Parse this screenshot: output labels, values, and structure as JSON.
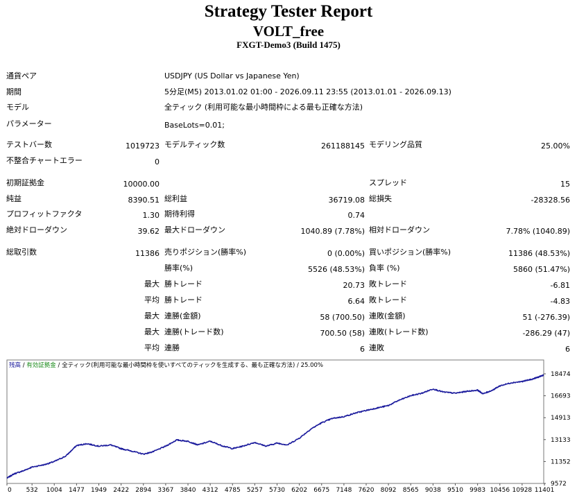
{
  "header": {
    "title": "Strategy Tester Report",
    "ea_name": "VOLT_free",
    "server_build": "FXGT-Demo3 (Build 1475)"
  },
  "info": {
    "symbol_label": "通貨ペア",
    "symbol": "USDJPY (US Dollar vs Japanese Yen)",
    "period_label": "期間",
    "period": "5分足(M5) 2013.01.02 01:00 - 2026.09.11 23:55 (2013.01.01 - 2026.09.13)",
    "model_label": "モデル",
    "model": "全ティック (利用可能な最小時間枠による最も正確な方法)",
    "params_label": "パラメーター",
    "params": "BaseLots=0.01;"
  },
  "stats": {
    "bars_label": "テストバー数",
    "bars": "1019723",
    "ticks_label": "モデルティック数",
    "ticks": "261188145",
    "quality_label": "モデリング品質",
    "quality": "25.00%",
    "errors_label": "不整合チャートエラー",
    "errors": "0",
    "deposit_label": "初期証拠金",
    "deposit": "10000.00",
    "spread_label": "スプレッド",
    "spread": "15",
    "net_label": "純益",
    "net": "8390.51",
    "gross_profit_label": "総利益",
    "gross_profit": "36719.08",
    "gross_loss_label": "総損失",
    "gross_loss": "-28328.56",
    "pf_label": "プロフィットファクタ",
    "pf": "1.30",
    "expected_label": "期待利得",
    "expected": "0.74",
    "abs_dd_label": "絶対ドローダウン",
    "abs_dd": "39.62",
    "max_dd_label": "最大ドローダウン",
    "max_dd": "1040.89 (7.78%)",
    "rel_dd_label": "相対ドローダウン",
    "rel_dd": "7.78% (1040.89)",
    "trades_label": "総取引数",
    "trades": "11386",
    "short_label": "売りポジション(勝率%)",
    "short": "0 (0.00%)",
    "long_label": "買いポジション(勝率%)",
    "long": "11386 (48.53%)",
    "win_label": "勝率(%)",
    "win": "5526 (48.53%)",
    "loss_label": "負率 (%)",
    "loss": "5860 (51.47%)",
    "max_word": "最大",
    "avg_word": "平均",
    "win_trade_label": "勝トレード",
    "loss_trade_label": "敗トレード",
    "largest_win": "20.73",
    "largest_loss": "-6.81",
    "average_win": "6.64",
    "average_loss": "-4.83",
    "consec_win_money_label": "連勝(金額)",
    "consec_win_money": "58 (700.50)",
    "consec_loss_money_label": "連敗(金額)",
    "consec_loss_money": "51 (-276.39)",
    "consec_win_trades_label": "連勝(トレード数)",
    "consec_win_trades": "700.50 (58)",
    "consec_loss_trades_label": "連敗(トレード数)",
    "consec_loss_trades": "-286.29 (47)",
    "avg_consec_win_label": "連勝",
    "avg_consec_win": "6",
    "avg_consec_loss_label": "連敗",
    "avg_consec_loss": "6"
  },
  "chart_data": {
    "type": "line",
    "legend": {
      "balance": "残高",
      "sep1": " / ",
      "equity": "有効証拠金",
      "sep2": " / ",
      "model": "全ティック(利用可能な最小時間枠を使いすべてのティックを生成する、最も正確な方法)",
      "sep3": " / ",
      "quality": "25.00%"
    },
    "colors": {
      "line": "#1a1a9c",
      "balance_label": "#1a1a9c",
      "equity_label": "#1a8a1a"
    },
    "x_ticks": [
      0,
      532,
      1004,
      1477,
      1949,
      2422,
      2894,
      3367,
      3840,
      4312,
      4785,
      5257,
      5730,
      6202,
      6675,
      7148,
      7620,
      8092,
      8565,
      9038,
      9510,
      9983,
      10456,
      10928,
      11401
    ],
    "y_ticks": [
      18474,
      16693,
      14913,
      13133,
      11352,
      9572
    ],
    "xlim": [
      0,
      11386
    ],
    "ylim": [
      9572,
      18474
    ],
    "series": [
      {
        "x": [
          0,
          150,
          350,
          532,
          800,
          1004,
          1250,
          1477,
          1700,
          1949,
          2200,
          2422,
          2650,
          2894,
          3100,
          3367,
          3600,
          3840,
          4050,
          4312,
          4550,
          4785,
          5000,
          5257,
          5500,
          5730,
          5950,
          6202,
          6450,
          6675,
          6900,
          7148,
          7400,
          7620,
          7850,
          8092,
          8300,
          8565,
          8800,
          9038,
          9250,
          9510,
          9750,
          9983,
          10100,
          10300,
          10456,
          10700,
          10928,
          11150,
          11300,
          11386
        ],
        "y": [
          10000,
          10350,
          10600,
          10900,
          11100,
          11350,
          11800,
          12650,
          12800,
          12600,
          12700,
          12400,
          12200,
          11950,
          12150,
          12600,
          13100,
          13000,
          12700,
          13000,
          12650,
          12400,
          12600,
          12900,
          12600,
          12850,
          12700,
          13250,
          14000,
          14500,
          14850,
          15000,
          15300,
          15500,
          15700,
          15900,
          16300,
          16700,
          16900,
          17250,
          17000,
          16900,
          17050,
          17150,
          16850,
          17150,
          17500,
          17750,
          17850,
          18050,
          18250,
          18390
        ]
      }
    ]
  }
}
